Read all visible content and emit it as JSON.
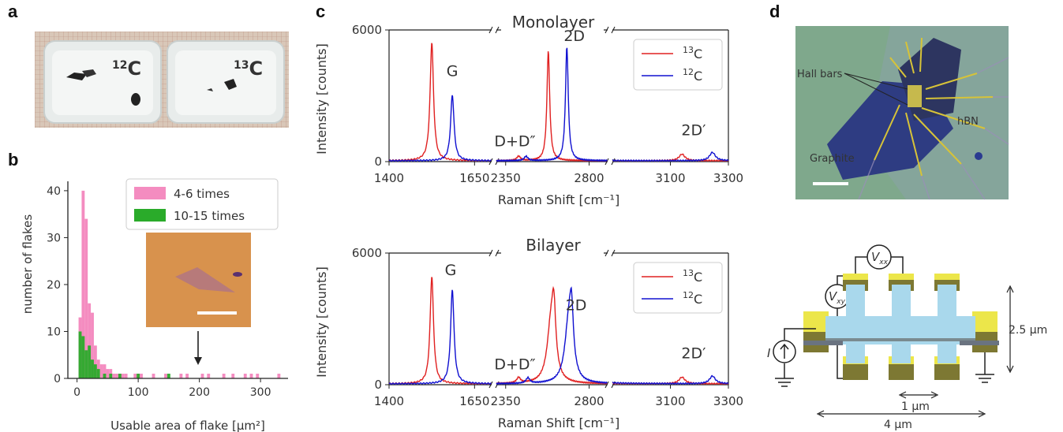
{
  "panels": {
    "a": {
      "letter": "a",
      "dish_labels": [
        "12C",
        "13C"
      ]
    },
    "b": {
      "letter": "b",
      "chart_data": {
        "type": "bar",
        "xlabel": "Usable area of flake [μm²]",
        "ylabel": "number of flakes",
        "xlim": [
          -15,
          345
        ],
        "ylim": [
          0,
          42
        ],
        "xticks": [
          0,
          100,
          200,
          300
        ],
        "yticks": [
          0,
          10,
          20,
          30,
          40
        ],
        "bin_width": 5,
        "legend": "top-right",
        "series": [
          {
            "name": "4-6 times",
            "color": "#f48cc0",
            "x": [
              5,
              10,
              15,
              20,
              25,
              30,
              35,
              40,
              45,
              50,
              55,
              60,
              65,
              70,
              75,
              80,
              95,
              100,
              105,
              125,
              145,
              170,
              180,
              205,
              215,
              240,
              255,
              275,
              285,
              295,
              330
            ],
            "values": [
              13,
              40,
              34,
              16,
              14,
              7,
              4,
              3,
              3,
              2,
              2,
              1,
              1,
              1,
              1,
              1,
              1,
              1,
              1,
              1,
              1,
              1,
              1,
              1,
              1,
              1,
              1,
              1,
              1,
              1,
              1
            ]
          },
          {
            "name": "10-15 times",
            "color": "#2aab2a",
            "x": [
              5,
              10,
              15,
              20,
              25,
              30,
              35,
              45,
              55,
              70,
              100,
              150
            ],
            "values": [
              10,
              9,
              6,
              7,
              4,
              3,
              2,
              1,
              1,
              1,
              1,
              1
            ]
          }
        ]
      }
    },
    "c": {
      "letter": "c",
      "charts": [
        {
          "title": "Monolayer",
          "labels": [
            {
              "text": "G"
            },
            {
              "text": "D+D″"
            },
            {
              "text": "2D"
            },
            {
              "text": "2D′"
            }
          ]
        },
        {
          "title": "Bilayer",
          "labels": [
            {
              "text": "G"
            },
            {
              "text": "D+D″"
            },
            {
              "text": "2D"
            },
            {
              "text": "2D′"
            }
          ]
        }
      ],
      "chart_data": [
        {
          "type": "line",
          "title": "Monolayer",
          "xlabel": "Raman Shift [cm⁻¹]",
          "ylabel": "Intensity [counts]",
          "ylim": [
            0,
            6000
          ],
          "yticks": [
            0,
            6000
          ],
          "xticks": [
            1400,
            1650,
            2350,
            2800,
            3100,
            3300
          ],
          "x_segments": [
            [
              1400,
              1700
            ],
            [
              2300,
              2900
            ],
            [
              2900,
              3300
            ]
          ],
          "legend": "top-right",
          "series": [
            {
              "name": "13C",
              "color": "#e02020",
              "peaks": [
                {
                  "x": 1525,
                  "y": 5400,
                  "w": 6
                },
                {
                  "x": 2420,
                  "y": 200,
                  "w": 12
                },
                {
                  "x": 2580,
                  "y": 5000,
                  "w": 9
                },
                {
                  "x": 3140,
                  "y": 300,
                  "w": 12
                }
              ]
            },
            {
              "name": "12C",
              "color": "#1010d0",
              "peaks": [
                {
                  "x": 1585,
                  "y": 3000,
                  "w": 6
                },
                {
                  "x": 2460,
                  "y": 200,
                  "w": 12
                },
                {
                  "x": 2680,
                  "y": 5200,
                  "w": 9
                },
                {
                  "x": 3245,
                  "y": 380,
                  "w": 12
                }
              ]
            }
          ]
        },
        {
          "type": "line",
          "title": "Bilayer",
          "xlabel": "Raman Shift [cm⁻¹]",
          "ylabel": "Intensity [counts]",
          "ylim": [
            0,
            6000
          ],
          "yticks": [
            0,
            6000
          ],
          "xticks": [
            1400,
            1650,
            2350,
            2800,
            3100,
            3300
          ],
          "x_segments": [
            [
              1400,
              1700
            ],
            [
              2300,
              2900
            ],
            [
              2900,
              3300
            ]
          ],
          "legend": "top-right",
          "series": [
            {
              "name": "13C",
              "color": "#e02020",
              "peaks": [
                {
                  "x": 1525,
                  "y": 4900,
                  "w": 6
                },
                {
                  "x": 2420,
                  "y": 250,
                  "w": 12
                },
                {
                  "x": 2595,
                  "y": 2700,
                  "w": 25
                },
                {
                  "x": 2610,
                  "y": 2300,
                  "w": 12
                },
                {
                  "x": 3140,
                  "y": 300,
                  "w": 12
                }
              ]
            },
            {
              "name": "12C",
              "color": "#1010d0",
              "peaks": [
                {
                  "x": 1585,
                  "y": 4300,
                  "w": 6
                },
                {
                  "x": 2470,
                  "y": 250,
                  "w": 12
                },
                {
                  "x": 2690,
                  "y": 2700,
                  "w": 25
                },
                {
                  "x": 2705,
                  "y": 2300,
                  "w": 12
                },
                {
                  "x": 3245,
                  "y": 350,
                  "w": 12
                }
              ]
            }
          ]
        }
      ]
    },
    "d": {
      "letter": "d",
      "image_labels": {
        "hall_bars": "Hall bars",
        "hbn": "hBN",
        "graphite": "Graphite"
      },
      "schematic": {
        "vxx": "V",
        "vxx_sub": "xx",
        "vxy": "V",
        "vxy_sub": "xy",
        "current": "I",
        "dim_height": "2.5 μm",
        "dim_short": "1 μm",
        "dim_long": "4 μm"
      }
    }
  }
}
